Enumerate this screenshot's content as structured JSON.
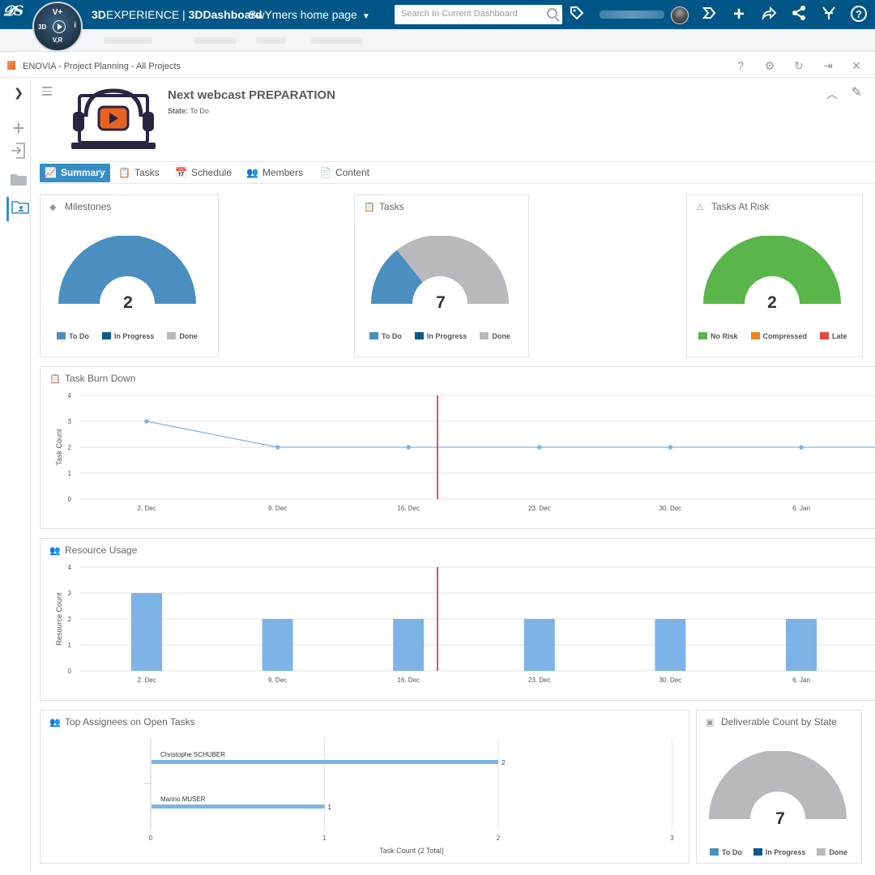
{
  "topbar": {
    "brand_bold": "3D",
    "brand_rest": "EXPERIENCE",
    "brand_sep": " | ",
    "brand_app": "3DDashboard",
    "dashboard_name": "SwYmers home page",
    "search_placeholder": "Search In Current Dashboard",
    "compass": {
      "top": "V+",
      "left": "3D",
      "right": "i",
      "bottom": "V,R"
    },
    "icons": [
      "tag-icon",
      "share-icon",
      "add-icon",
      "forward-icon",
      "network-icon",
      "collab-icon",
      "help-icon"
    ],
    "accent": "#005686"
  },
  "widget": {
    "title": "ENOVIA - Project Planning - All Projects"
  },
  "project": {
    "title": "Next webcast PREPARATION",
    "state_label": "State:",
    "state_value": "To Do"
  },
  "tabs": [
    {
      "label": "Summary",
      "active": true
    },
    {
      "label": "Tasks"
    },
    {
      "label": "Schedule"
    },
    {
      "label": "Members"
    },
    {
      "label": "Content"
    }
  ],
  "milestones": {
    "title": "Milestones",
    "total": "2",
    "legend": [
      "To Do",
      "In Progress",
      "Done"
    ],
    "colors": [
      "#4a8fc0",
      "#0d5a87",
      "#b9b9bd"
    ]
  },
  "tasks": {
    "title": "Tasks",
    "total": "7",
    "legend": [
      "To Do",
      "In Progress",
      "Done"
    ],
    "colors": [
      "#4a8fc0",
      "#0d5a87",
      "#b9b9bd"
    ]
  },
  "risk": {
    "title": "Tasks At Risk",
    "total": "2",
    "legend": [
      "No Risk",
      "Compressed",
      "Late"
    ],
    "colors": [
      "#5ab54b",
      "#e8821f",
      "#de4a3e"
    ]
  },
  "deliverables": {
    "title": "Deliverable Count by State",
    "total": "7",
    "legend": [
      "To Do",
      "In Progress",
      "Done"
    ],
    "colors": [
      "#4a8fc0",
      "#0d5a87",
      "#b9b9bd"
    ]
  },
  "burndown": {
    "title": "Task Burn Down"
  },
  "resource": {
    "title": "Resource Usage"
  },
  "assignees": {
    "title": "Top Assignees on Open Tasks"
  },
  "chart_data": [
    {
      "type": "pie",
      "title": "Milestones",
      "categories": [
        "To Do",
        "In Progress",
        "Done"
      ],
      "values": [
        2,
        0,
        0
      ]
    },
    {
      "type": "pie",
      "title": "Tasks",
      "categories": [
        "To Do",
        "In Progress",
        "Done"
      ],
      "values": [
        2,
        0,
        5
      ]
    },
    {
      "type": "pie",
      "title": "Tasks At Risk",
      "categories": [
        "No Risk",
        "Compressed",
        "Late"
      ],
      "values": [
        2,
        0,
        0
      ]
    },
    {
      "type": "line",
      "title": "Task Burn Down",
      "xlabel": "",
      "ylabel": "Task Count",
      "x": [
        "2. Dec",
        "9. Dec",
        "16. Dec",
        "23. Dec",
        "30. Dec",
        "6. Jan"
      ],
      "values": [
        3,
        2,
        2,
        2,
        2,
        2
      ],
      "ylim": [
        0,
        4
      ],
      "yticks": [
        0,
        1,
        2,
        3,
        4
      ],
      "today_marker": "between 16. Dec and 23. Dec",
      "grid": true
    },
    {
      "type": "bar",
      "title": "Resource Usage",
      "xlabel": "",
      "ylabel": "Resource Count",
      "categories": [
        "2. Dec",
        "9. Dec",
        "16. Dec",
        "23. Dec",
        "30. Dec",
        "6. Jan"
      ],
      "values": [
        3,
        2,
        2,
        2,
        2,
        2
      ],
      "ylim": [
        0,
        4
      ],
      "yticks": [
        0,
        1,
        2,
        3,
        4
      ],
      "grid": true
    },
    {
      "type": "bar",
      "orientation": "horizontal",
      "title": "Top Assignees on Open Tasks",
      "xlabel": "Task Count (2 Total)",
      "categories": [
        "Christophe SCHUBER",
        "Marino MUSER"
      ],
      "values": [
        2,
        1
      ],
      "xlim": [
        0,
        3
      ],
      "xticks": [
        0,
        1,
        2,
        3
      ]
    },
    {
      "type": "pie",
      "title": "Deliverable Count by State",
      "categories": [
        "To Do",
        "In Progress",
        "Done"
      ],
      "values": [
        0,
        0,
        7
      ]
    }
  ]
}
